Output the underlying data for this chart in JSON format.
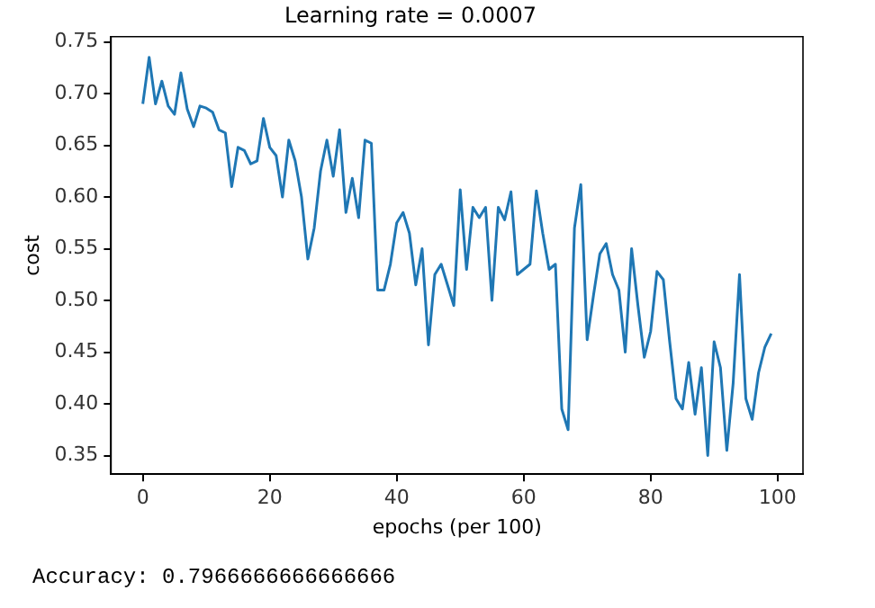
{
  "chart_data": {
    "type": "line",
    "title": "Learning rate = 0.0007",
    "xlabel": "epochs (per 100)",
    "ylabel": "cost",
    "x": [
      0,
      1,
      2,
      3,
      4,
      5,
      6,
      7,
      8,
      9,
      10,
      11,
      12,
      13,
      14,
      15,
      16,
      17,
      18,
      19,
      20,
      21,
      22,
      23,
      24,
      25,
      26,
      27,
      28,
      29,
      30,
      31,
      32,
      33,
      34,
      35,
      36,
      37,
      38,
      39,
      40,
      41,
      42,
      43,
      44,
      45,
      46,
      47,
      48,
      49,
      50,
      51,
      52,
      53,
      54,
      55,
      56,
      57,
      58,
      59,
      60,
      61,
      62,
      63,
      64,
      65,
      66,
      67,
      68,
      69,
      70,
      71,
      72,
      73,
      74,
      75,
      76,
      77,
      78,
      79,
      80,
      81,
      82,
      83,
      84,
      85,
      86,
      87,
      88,
      89,
      90,
      91,
      92,
      93,
      94,
      95,
      96,
      97,
      98,
      99
    ],
    "series": [
      {
        "color": "#1f77b4",
        "values": [
          0.69,
          0.735,
          0.69,
          0.712,
          0.688,
          0.68,
          0.72,
          0.685,
          0.668,
          0.688,
          0.686,
          0.682,
          0.665,
          0.662,
          0.61,
          0.648,
          0.645,
          0.632,
          0.635,
          0.676,
          0.648,
          0.64,
          0.6,
          0.655,
          0.635,
          0.6,
          0.54,
          0.57,
          0.625,
          0.655,
          0.62,
          0.665,
          0.585,
          0.618,
          0.58,
          0.655,
          0.652,
          0.51,
          0.51,
          0.535,
          0.575,
          0.585,
          0.565,
          0.515,
          0.55,
          0.457,
          0.525,
          0.535,
          0.515,
          0.495,
          0.607,
          0.53,
          0.59,
          0.58,
          0.59,
          0.5,
          0.59,
          0.578,
          0.605,
          0.525,
          0.53,
          0.535,
          0.606,
          0.565,
          0.53,
          0.535,
          0.395,
          0.375,
          0.57,
          0.612,
          0.462,
          0.505,
          0.545,
          0.555,
          0.525,
          0.51,
          0.45,
          0.55,
          0.495,
          0.445,
          0.47,
          0.528,
          0.52,
          0.46,
          0.405,
          0.395,
          0.44,
          0.39,
          0.435,
          0.35,
          0.46,
          0.435,
          0.355,
          0.42,
          0.525,
          0.405,
          0.385,
          0.43,
          0.455,
          0.468
        ]
      }
    ],
    "xlim": [
      -5,
      104
    ],
    "xticks": [
      0,
      20,
      40,
      60,
      80,
      100
    ],
    "ylim": [
      0.332,
      0.755
    ],
    "yticks": [
      {
        "value": 0.35,
        "label": "0.35"
      },
      {
        "value": 0.4,
        "label": "0.40"
      },
      {
        "value": 0.45,
        "label": "0.45"
      },
      {
        "value": 0.5,
        "label": "0.50"
      },
      {
        "value": 0.55,
        "label": "0.55"
      },
      {
        "value": 0.6,
        "label": "0.60"
      },
      {
        "value": 0.65,
        "label": "0.65"
      },
      {
        "value": 0.7,
        "label": "0.70"
      },
      {
        "value": 0.75,
        "label": "0.75"
      }
    ],
    "grid": false,
    "legend": false,
    "marker": "none",
    "line_style": "solid",
    "annotations": [
      "Accuracy: 0.7966666666666666"
    ]
  }
}
